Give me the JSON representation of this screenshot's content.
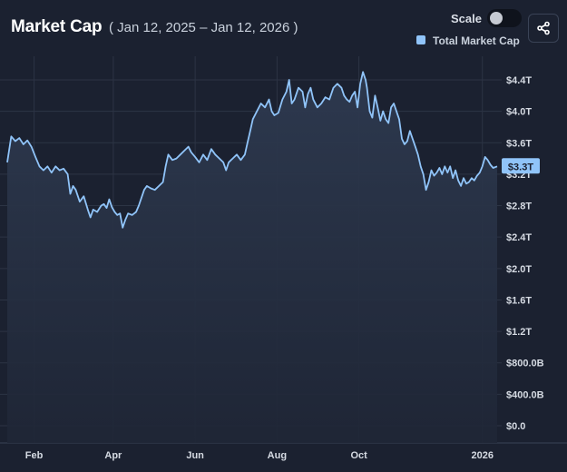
{
  "header": {
    "title": "Market Cap",
    "date_range": "( Jan 12, 2025 – Jan 12, 2026 )",
    "scale_label": "Scale",
    "share_icon": "share-icon"
  },
  "colors": {
    "background": "#1b2130",
    "line": "#90c4f9",
    "grid": "#2c3444",
    "tag": "#90c4f9"
  },
  "chart_data": {
    "type": "area",
    "title": "Market Cap",
    "subtitle": "( Jan 12, 2025 – Jan 12, 2026 )",
    "legend": [
      {
        "name": "Total Market Cap",
        "color": "#90c4f9",
        "position": "top-right"
      }
    ],
    "ylabel": "",
    "xlabel": "",
    "y_unit": "USD trillions",
    "ylim": [
      0,
      4.6
    ],
    "y_ticks": [
      {
        "value": 0.0,
        "label": "$0.0"
      },
      {
        "value": 0.4,
        "label": "$400.0B"
      },
      {
        "value": 0.8,
        "label": "$800.0B"
      },
      {
        "value": 1.2,
        "label": "$1.2T"
      },
      {
        "value": 1.6,
        "label": "$1.6T"
      },
      {
        "value": 2.0,
        "label": "$2.0T"
      },
      {
        "value": 2.4,
        "label": "$2.4T"
      },
      {
        "value": 2.8,
        "label": "$2.8T"
      },
      {
        "value": 3.2,
        "label": "$3.2T"
      },
      {
        "value": 3.6,
        "label": "$3.6T"
      },
      {
        "value": 4.0,
        "label": "$4.0T"
      },
      {
        "value": 4.4,
        "label": "$4.4T"
      }
    ],
    "x_range_days": [
      0,
      365
    ],
    "x_ticks": [
      {
        "day": 20,
        "label": "Feb"
      },
      {
        "day": 79,
        "label": "Apr"
      },
      {
        "day": 140,
        "label": "Jun"
      },
      {
        "day": 201,
        "label": "Aug"
      },
      {
        "day": 262,
        "label": "Oct"
      },
      {
        "day": 354,
        "label": "2026"
      }
    ],
    "grid": true,
    "current_value_label": "$3.3T",
    "current_value": 3.3,
    "series": [
      {
        "name": "Total Market Cap",
        "points": [
          [
            0,
            3.35
          ],
          [
            3,
            3.68
          ],
          [
            6,
            3.62
          ],
          [
            9,
            3.66
          ],
          [
            12,
            3.58
          ],
          [
            15,
            3.63
          ],
          [
            18,
            3.55
          ],
          [
            21,
            3.42
          ],
          [
            24,
            3.3
          ],
          [
            27,
            3.25
          ],
          [
            30,
            3.3
          ],
          [
            33,
            3.22
          ],
          [
            36,
            3.3
          ],
          [
            39,
            3.25
          ],
          [
            42,
            3.27
          ],
          [
            45,
            3.2
          ],
          [
            47,
            2.95
          ],
          [
            49,
            3.05
          ],
          [
            51,
            3.0
          ],
          [
            54,
            2.85
          ],
          [
            57,
            2.92
          ],
          [
            60,
            2.75
          ],
          [
            62,
            2.65
          ],
          [
            64,
            2.75
          ],
          [
            67,
            2.72
          ],
          [
            70,
            2.8
          ],
          [
            72,
            2.82
          ],
          [
            74,
            2.77
          ],
          [
            76,
            2.88
          ],
          [
            78,
            2.78
          ],
          [
            80,
            2.72
          ],
          [
            82,
            2.68
          ],
          [
            84,
            2.7
          ],
          [
            86,
            2.52
          ],
          [
            88,
            2.62
          ],
          [
            90,
            2.7
          ],
          [
            93,
            2.68
          ],
          [
            96,
            2.72
          ],
          [
            98,
            2.8
          ],
          [
            100,
            2.9
          ],
          [
            102,
            3.0
          ],
          [
            104,
            3.05
          ],
          [
            107,
            3.02
          ],
          [
            110,
            3.0
          ],
          [
            113,
            3.05
          ],
          [
            116,
            3.1
          ],
          [
            118,
            3.3
          ],
          [
            120,
            3.45
          ],
          [
            123,
            3.38
          ],
          [
            126,
            3.4
          ],
          [
            129,
            3.45
          ],
          [
            132,
            3.5
          ],
          [
            135,
            3.55
          ],
          [
            137,
            3.48
          ],
          [
            140,
            3.42
          ],
          [
            143,
            3.35
          ],
          [
            146,
            3.45
          ],
          [
            149,
            3.38
          ],
          [
            152,
            3.52
          ],
          [
            155,
            3.45
          ],
          [
            158,
            3.4
          ],
          [
            161,
            3.35
          ],
          [
            163,
            3.25
          ],
          [
            165,
            3.35
          ],
          [
            168,
            3.4
          ],
          [
            171,
            3.45
          ],
          [
            174,
            3.38
          ],
          [
            177,
            3.45
          ],
          [
            179,
            3.6
          ],
          [
            181,
            3.75
          ],
          [
            183,
            3.9
          ],
          [
            186,
            4.0
          ],
          [
            189,
            4.1
          ],
          [
            192,
            4.05
          ],
          [
            195,
            4.15
          ],
          [
            197,
            4.0
          ],
          [
            199,
            3.95
          ],
          [
            202,
            3.98
          ],
          [
            205,
            4.15
          ],
          [
            208,
            4.25
          ],
          [
            210,
            4.4
          ],
          [
            212,
            4.1
          ],
          [
            214,
            4.15
          ],
          [
            217,
            4.3
          ],
          [
            220,
            4.25
          ],
          [
            222,
            4.05
          ],
          [
            224,
            4.22
          ],
          [
            226,
            4.3
          ],
          [
            228,
            4.15
          ],
          [
            231,
            4.05
          ],
          [
            234,
            4.1
          ],
          [
            237,
            4.18
          ],
          [
            240,
            4.15
          ],
          [
            243,
            4.3
          ],
          [
            246,
            4.35
          ],
          [
            249,
            4.3
          ],
          [
            251,
            4.2
          ],
          [
            253,
            4.15
          ],
          [
            255,
            4.12
          ],
          [
            257,
            4.2
          ],
          [
            259,
            4.25
          ],
          [
            261,
            4.05
          ],
          [
            263,
            4.35
          ],
          [
            265,
            4.5
          ],
          [
            267,
            4.4
          ],
          [
            268,
            4.3
          ],
          [
            270,
            4.0
          ],
          [
            272,
            3.92
          ],
          [
            274,
            4.2
          ],
          [
            276,
            4.05
          ],
          [
            278,
            3.88
          ],
          [
            280,
            4.0
          ],
          [
            282,
            3.9
          ],
          [
            284,
            3.85
          ],
          [
            286,
            4.05
          ],
          [
            288,
            4.1
          ],
          [
            290,
            4.0
          ],
          [
            292,
            3.9
          ],
          [
            294,
            3.65
          ],
          [
            296,
            3.58
          ],
          [
            298,
            3.62
          ],
          [
            300,
            3.75
          ],
          [
            302,
            3.65
          ],
          [
            304,
            3.55
          ],
          [
            306,
            3.45
          ],
          [
            308,
            3.3
          ],
          [
            310,
            3.2
          ],
          [
            312,
            3.0
          ],
          [
            314,
            3.1
          ],
          [
            316,
            3.25
          ],
          [
            318,
            3.18
          ],
          [
            320,
            3.22
          ],
          [
            322,
            3.28
          ],
          [
            324,
            3.2
          ],
          [
            326,
            3.3
          ],
          [
            328,
            3.22
          ],
          [
            330,
            3.3
          ],
          [
            332,
            3.15
          ],
          [
            334,
            3.25
          ],
          [
            336,
            3.12
          ],
          [
            338,
            3.05
          ],
          [
            340,
            3.15
          ],
          [
            342,
            3.08
          ],
          [
            344,
            3.1
          ],
          [
            346,
            3.15
          ],
          [
            348,
            3.12
          ],
          [
            350,
            3.18
          ],
          [
            352,
            3.22
          ],
          [
            354,
            3.3
          ],
          [
            356,
            3.42
          ],
          [
            358,
            3.38
          ],
          [
            360,
            3.32
          ],
          [
            362,
            3.28
          ],
          [
            365,
            3.3
          ]
        ]
      }
    ]
  }
}
